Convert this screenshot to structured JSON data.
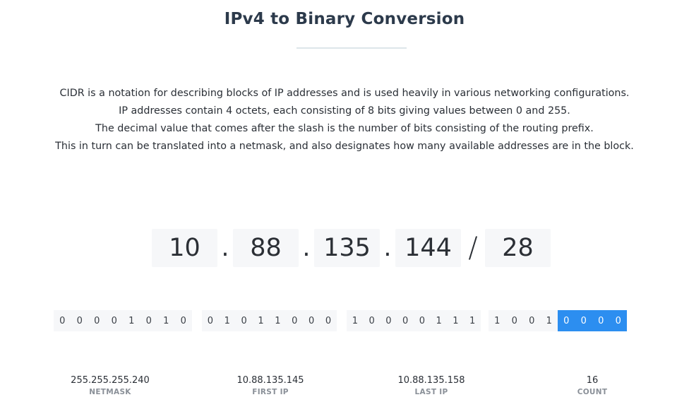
{
  "header": {
    "title": "IPv4 to Binary Conversion"
  },
  "description": {
    "lines": [
      "CIDR is a notation for describing blocks of IP addresses and is used heavily in various networking configurations.",
      "IP addresses contain 4 octets, each consisting of 8 bits giving values between 0 and 255.",
      "The decimal value that comes after the slash is the number of bits consisting of the routing prefix.",
      "This in turn can be translated into a netmask, and also designates how many available addresses are in the block."
    ]
  },
  "ip_input": {
    "octets": [
      "10",
      "88",
      "135",
      "144"
    ],
    "dot": ".",
    "slash": "/",
    "prefix": "28"
  },
  "binary": {
    "groups": [
      {
        "bits": [
          "0",
          "0",
          "0",
          "0",
          "1",
          "0",
          "1",
          "0"
        ],
        "host_bits_from": 8
      },
      {
        "bits": [
          "0",
          "1",
          "0",
          "1",
          "1",
          "0",
          "0",
          "0"
        ],
        "host_bits_from": 8
      },
      {
        "bits": [
          "1",
          "0",
          "0",
          "0",
          "0",
          "1",
          "1",
          "1"
        ],
        "host_bits_from": 8
      },
      {
        "bits": [
          "1",
          "0",
          "0",
          "1",
          "0",
          "0",
          "0",
          "0"
        ],
        "host_bits_from": 4
      }
    ],
    "host_highlight_color": "#2c8ef0"
  },
  "stats": {
    "netmask": {
      "value": "255.255.255.240",
      "label": "NETMASK"
    },
    "first_ip": {
      "value": "10.88.135.145",
      "label": "FIRST IP"
    },
    "last_ip": {
      "value": "10.88.135.158",
      "label": "LAST IP"
    },
    "count": {
      "value": "16",
      "label": "COUNT"
    }
  }
}
